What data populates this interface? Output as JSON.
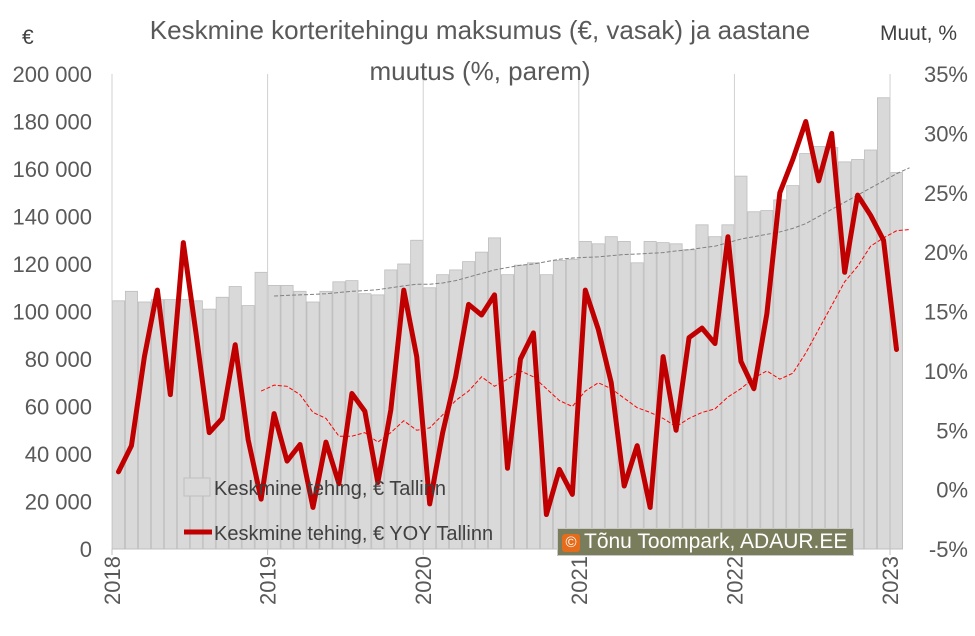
{
  "chart_data": {
    "type": "bar+line",
    "title_line1": "Keskmine korteritehingu maksumus (€, vasak) ja aastane",
    "title_line2": "muutus (%, parem)",
    "y_left_unit": "€",
    "y_right_unit": "Muut, %",
    "ylim_left": [
      0,
      200000
    ],
    "ylim_right": [
      -0.05,
      0.35
    ],
    "y_left_ticks": [
      "0",
      "20 000",
      "40 000",
      "60 000",
      "80 000",
      "100 000",
      "120 000",
      "140 000",
      "160 000",
      "180 000",
      "200 000"
    ],
    "y_right_ticks": [
      "-5%",
      "0%",
      "5%",
      "10%",
      "15%",
      "20%",
      "25%",
      "30%",
      "35%"
    ],
    "x_ticks": [
      "2018",
      "2019",
      "2020",
      "2021",
      "2022",
      "2023"
    ],
    "grid": "vertical gridlines at year starts",
    "legend": [
      {
        "label": "Keskmine tehing, € Tallinn",
        "kind": "bar"
      },
      {
        "label": "Keskmine tehing, € YOY Tallinn",
        "kind": "line"
      }
    ],
    "series": [
      {
        "name": "Keskmine tehing, € Tallinn",
        "kind": "bar",
        "color": "#d9d9d9",
        "values": [
          104500,
          108500,
          104000,
          105000,
          105000,
          105000,
          104500,
          101000,
          106000,
          110500,
          102500,
          116500,
          111000,
          111000,
          108500,
          104000,
          108500,
          112500,
          113000,
          107500,
          107000,
          117500,
          120000,
          130000,
          110000,
          115500,
          117500,
          121000,
          125000,
          131000,
          115500,
          119500,
          120500,
          115500,
          121500,
          122000,
          129500,
          128500,
          131500,
          129500,
          120500,
          129500,
          129000,
          128500,
          126000,
          136500,
          131500,
          136500,
          157000,
          142000,
          142500,
          147000,
          153000,
          166500,
          169500,
          169000,
          163000,
          164000,
          168000,
          190000,
          158500
        ]
      },
      {
        "name": "Keskmine tehing, € YOY Tallinn",
        "kind": "line",
        "axis": "right",
        "color": "#c00000",
        "values": [
          0.015,
          0.037,
          0.112,
          0.168,
          0.08,
          0.208,
          0.13,
          0.048,
          0.06,
          0.122,
          0.042,
          -0.008,
          0.064,
          0.024,
          0.038,
          -0.015,
          0.04,
          0.005,
          0.081,
          0.066,
          0.006,
          0.067,
          0.168,
          0.112,
          -0.012,
          0.048,
          0.095,
          0.156,
          0.147,
          0.164,
          0.018,
          0.11,
          0.132,
          -0.021,
          0.017,
          -0.004,
          0.168,
          0.135,
          0.09,
          0.003,
          0.037,
          -0.015,
          0.112,
          0.05,
          0.128,
          0.136,
          0.123,
          0.213,
          0.108,
          0.085,
          0.148,
          0.25,
          0.278,
          0.31,
          0.26,
          0.3,
          0.183,
          0.248,
          0.231,
          0.21,
          0.118
        ]
      }
    ],
    "trend_lines": [
      {
        "of": "Keskmine tehing, € Tallinn",
        "axis": "left",
        "start_index": 12,
        "color": "#808080",
        "values": [
          106500,
          106800,
          107000,
          107200,
          107500,
          108000,
          108500,
          108800,
          109200,
          110000,
          110800,
          111500,
          111500,
          112000,
          113000,
          114500,
          116000,
          117500,
          118500,
          119500,
          120000,
          121000,
          122000,
          122500,
          122800,
          123000,
          123500,
          124000,
          124200,
          124500,
          124800,
          125500,
          126000,
          126800,
          127500,
          129000,
          130500,
          131500,
          132500,
          133500,
          135000,
          137000,
          140000,
          143000,
          146000,
          149000,
          152000,
          155000,
          158000,
          160500
        ]
      },
      {
        "of": "Keskmine tehing, € YOY Tallinn",
        "axis": "right",
        "start_index": 11,
        "color": "#ff0000",
        "values": [
          0.083,
          0.088,
          0.087,
          0.08,
          0.065,
          0.06,
          0.045,
          0.045,
          0.048,
          0.04,
          0.048,
          0.058,
          0.05,
          0.052,
          0.063,
          0.075,
          0.083,
          0.095,
          0.087,
          0.093,
          0.1,
          0.095,
          0.085,
          0.075,
          0.07,
          0.083,
          0.09,
          0.085,
          0.077,
          0.069,
          0.065,
          0.06,
          0.053,
          0.06,
          0.065,
          0.068,
          0.078,
          0.085,
          0.094,
          0.1,
          0.093,
          0.098,
          0.115,
          0.135,
          0.155,
          0.175,
          0.188,
          0.205,
          0.212,
          0.218,
          0.219
        ]
      }
    ],
    "credit": "Tõnu Toompark, ADAUR.EE"
  }
}
